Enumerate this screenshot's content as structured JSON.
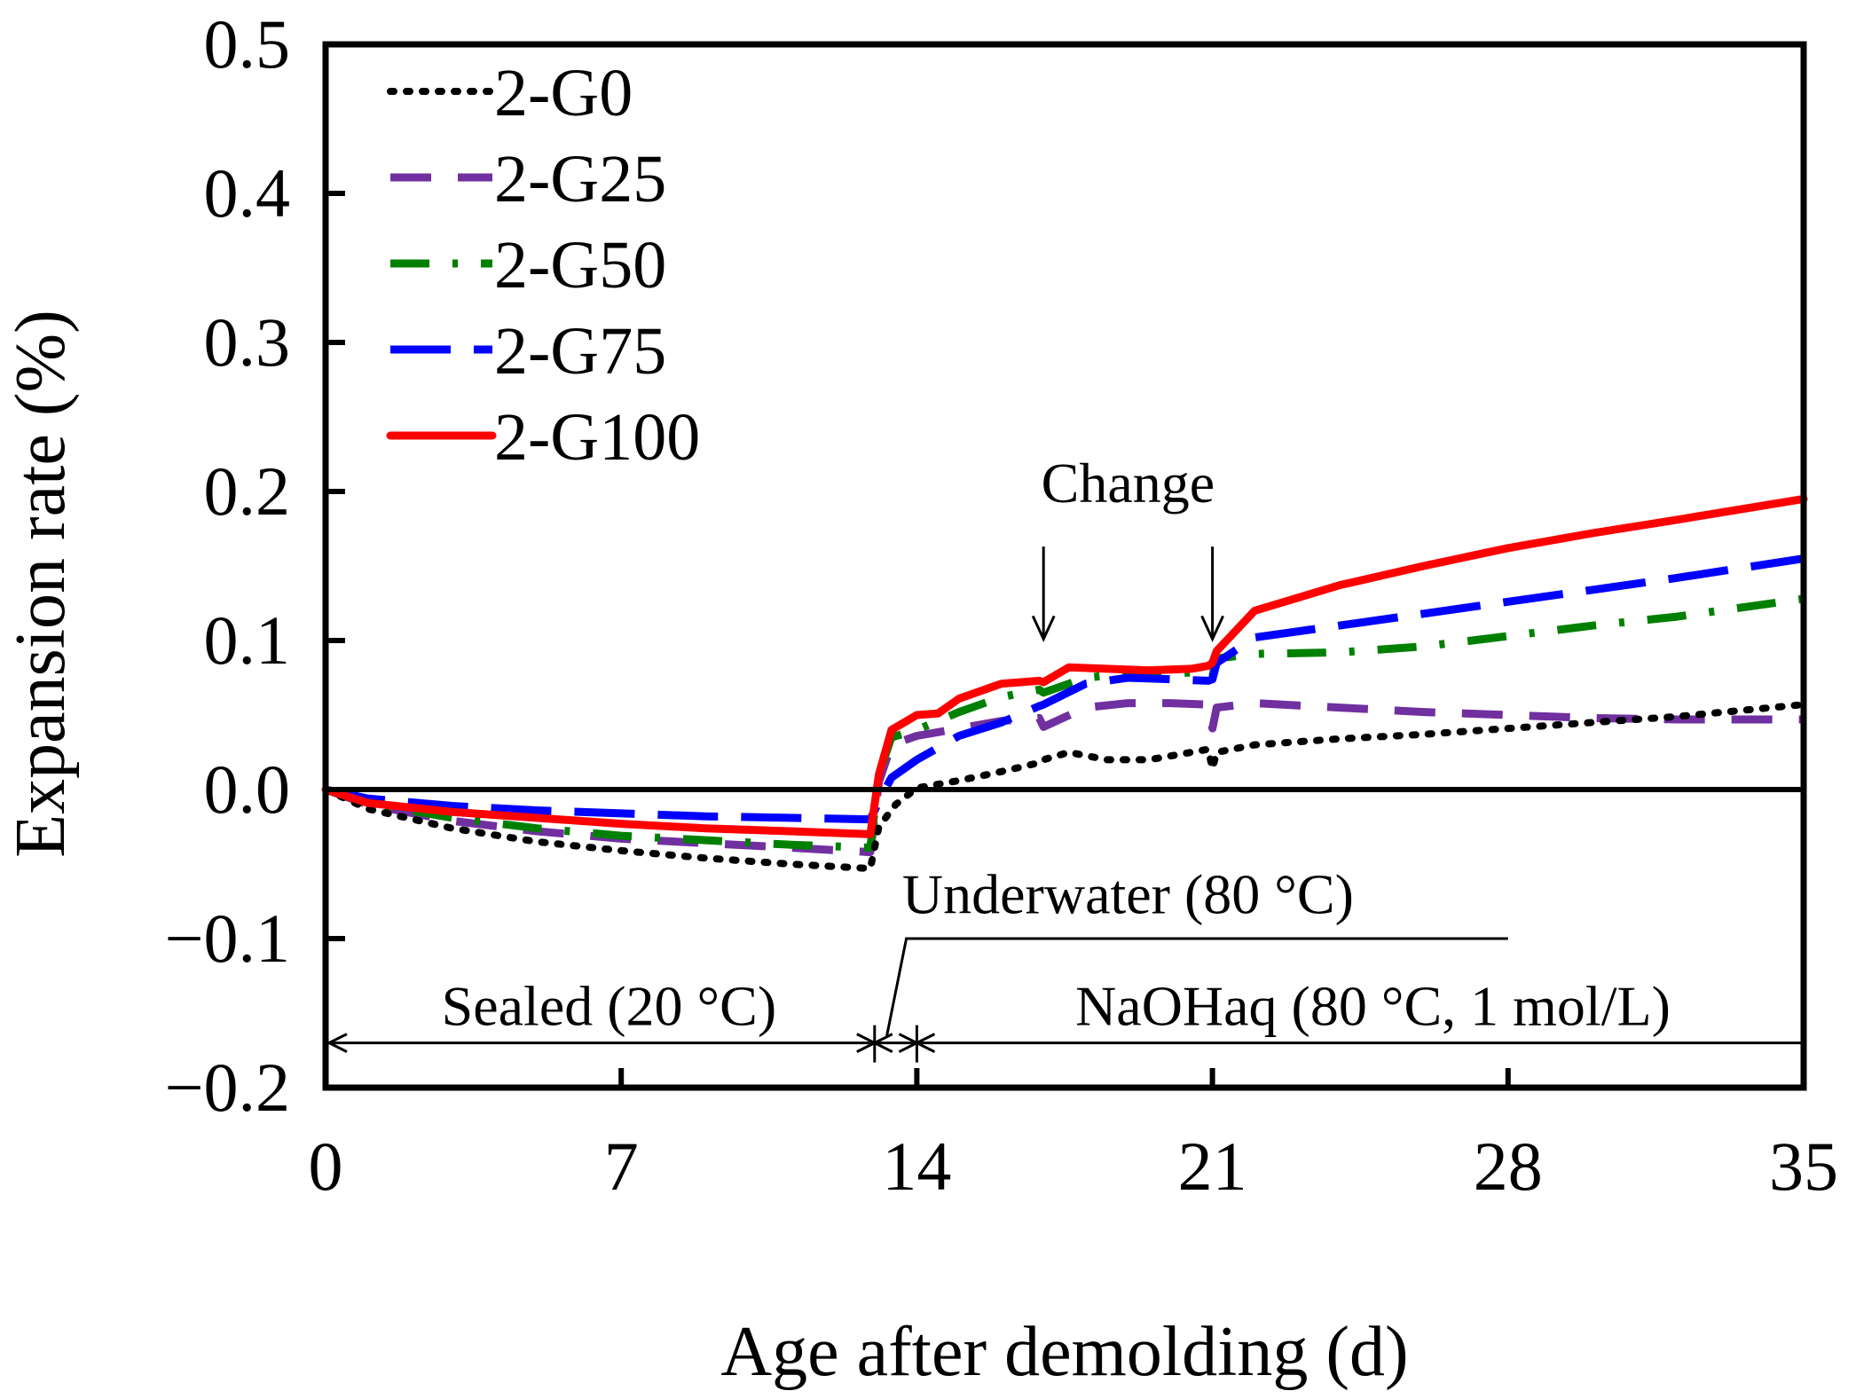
{
  "chart_data": {
    "type": "line",
    "xlabel": "Age after demolding (d)",
    "ylabel": "Expansion rate (%)",
    "xlim": [
      0,
      35
    ],
    "ylim": [
      -0.2,
      0.5
    ],
    "x_ticks": [
      "0",
      "7",
      "14",
      "21",
      "28",
      "35"
    ],
    "y_ticks": [
      "−0.2",
      "−0.1",
      "0.0",
      "0.1",
      "0.2",
      "0.3",
      "0.4",
      "0.5"
    ],
    "x_tick_values": [
      0,
      7,
      14,
      21,
      28,
      35
    ],
    "y_tick_values": [
      -0.2,
      -0.1,
      0.0,
      0.1,
      0.2,
      0.3,
      0.4,
      0.5
    ],
    "grid": false,
    "legend_position": "top-left",
    "zero_line": true,
    "series": [
      {
        "name": "2-G0",
        "color": "#000000",
        "style": "dotted",
        "x": [
          0,
          1,
          3,
          5,
          7,
          9,
          11,
          12.9,
          13.1,
          13.5,
          14,
          15,
          16,
          16.9,
          17,
          17.6,
          18.5,
          19.5,
          20.5,
          20.9,
          21,
          21.1,
          22,
          24,
          26,
          28,
          30,
          32,
          35
        ],
        "y": [
          0,
          -0.013,
          -0.026,
          -0.035,
          -0.041,
          -0.046,
          -0.05,
          -0.053,
          -0.025,
          -0.01,
          0.001,
          0.006,
          0.012,
          0.018,
          0.02,
          0.025,
          0.02,
          0.02,
          0.025,
          0.027,
          0.014,
          0.025,
          0.03,
          0.034,
          0.037,
          0.041,
          0.045,
          0.049,
          0.057
        ]
      },
      {
        "name": "2-G25",
        "color": "#7030A0",
        "style": "dashed",
        "x": [
          0,
          1,
          3,
          5,
          7,
          9,
          11,
          12.9,
          13.1,
          13.4,
          14,
          15,
          16,
          16.9,
          17,
          18,
          19,
          20,
          20.9,
          21,
          21.1,
          22,
          24,
          26,
          28,
          30,
          32,
          35
        ],
        "y": [
          0,
          -0.01,
          -0.021,
          -0.028,
          -0.033,
          -0.036,
          -0.039,
          -0.042,
          0.005,
          0.03,
          0.036,
          0.041,
          0.046,
          0.048,
          0.042,
          0.055,
          0.058,
          0.058,
          0.057,
          0.041,
          0.055,
          0.058,
          0.055,
          0.052,
          0.05,
          0.048,
          0.047,
          0.047
        ]
      },
      {
        "name": "2-G50",
        "color": "#008000",
        "style": "dashdot",
        "x": [
          0,
          1,
          3,
          5,
          7,
          9,
          11,
          12.9,
          13.1,
          13.4,
          14,
          15,
          16,
          16.9,
          17,
          18,
          19,
          20,
          20.9,
          21,
          21.1,
          22,
          24,
          26,
          28,
          30,
          32,
          35
        ],
        "y": [
          0,
          -0.009,
          -0.019,
          -0.026,
          -0.031,
          -0.034,
          -0.037,
          -0.039,
          0.01,
          0.035,
          0.04,
          0.052,
          0.062,
          0.067,
          0.065,
          0.075,
          0.078,
          0.078,
          0.079,
          0.076,
          0.088,
          0.091,
          0.092,
          0.096,
          0.103,
          0.11,
          0.116,
          0.128
        ]
      },
      {
        "name": "2-G75",
        "color": "#0000FF",
        "style": "longdash",
        "x": [
          0,
          1,
          3,
          5,
          7,
          9,
          11,
          12.9,
          13.1,
          13.4,
          14,
          15,
          16,
          16.9,
          17,
          18,
          19,
          20,
          20.9,
          21,
          21.1,
          22,
          24,
          26,
          28,
          30,
          32,
          35
        ],
        "y": [
          0,
          -0.006,
          -0.011,
          -0.014,
          -0.016,
          -0.018,
          -0.019,
          -0.02,
          -0.008,
          0.008,
          0.02,
          0.036,
          0.045,
          0.056,
          0.057,
          0.071,
          0.075,
          0.074,
          0.073,
          0.074,
          0.085,
          0.102,
          0.11,
          0.118,
          0.126,
          0.134,
          0.142,
          0.155
        ]
      },
      {
        "name": "2-G100",
        "color": "#FF0000",
        "style": "solid",
        "x": [
          0,
          1,
          3,
          5,
          7,
          9,
          11,
          12.9,
          13.1,
          13.4,
          14,
          14.5,
          15,
          16,
          16.9,
          17,
          17.6,
          18.5,
          19.5,
          20.5,
          20.9,
          21,
          21.1,
          22,
          24,
          26,
          28,
          30,
          32,
          35
        ],
        "y": [
          0,
          -0.009,
          -0.015,
          -0.019,
          -0.023,
          -0.026,
          -0.028,
          -0.03,
          0.01,
          0.04,
          0.05,
          0.051,
          0.061,
          0.071,
          0.073,
          0.072,
          0.082,
          0.081,
          0.08,
          0.081,
          0.083,
          0.085,
          0.093,
          0.12,
          0.137,
          0.15,
          0.162,
          0.172,
          0.181,
          0.195
        ]
      }
    ],
    "annotations": {
      "change_label": "Change",
      "change_arrow_x": [
        17,
        21
      ],
      "sealed_label": "Sealed (20 °C)",
      "underwater_label": "Underwater (80 °C)",
      "naoh_label": "NaOHaq (80 °C, 1  mol/L)",
      "phase_boundaries_x": [
        13,
        14
      ]
    }
  }
}
